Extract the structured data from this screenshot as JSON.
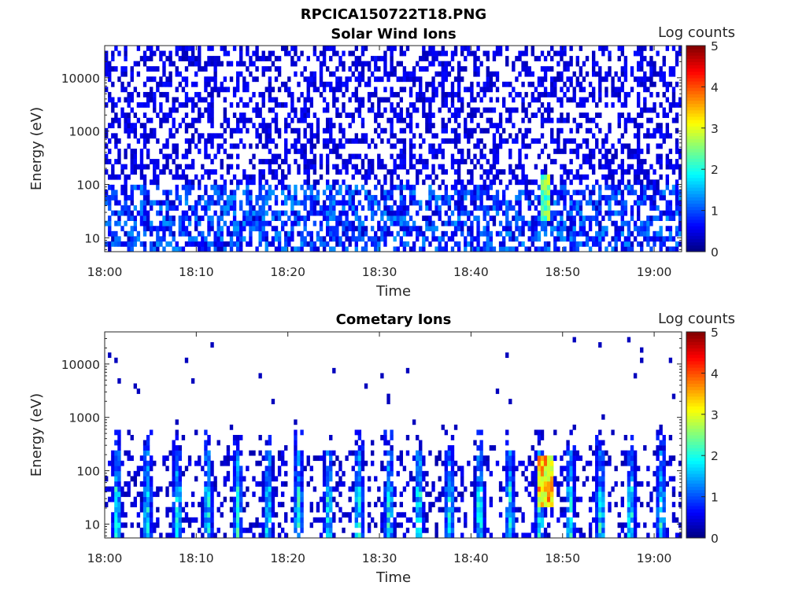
{
  "figure_title": "RPCICA150722T18.PNG",
  "chart_data": [
    {
      "type": "heatmap",
      "title": "Solar Wind Ions",
      "xlabel": "Time",
      "ylabel": "Energy (eV)",
      "x_ticks": [
        "18:00",
        "18:10",
        "18:20",
        "18:30",
        "18:40",
        "18:50",
        "19:00"
      ],
      "y_ticks": [
        "10",
        "100",
        "1000",
        "10000"
      ],
      "y_scale": "log",
      "xlim": [
        "18:00",
        "19:03"
      ],
      "ylim": [
        5.5,
        40000
      ],
      "colorbar": {
        "label": "Log counts",
        "ticks": [
          "0",
          "1",
          "2",
          "3",
          "4",
          "5"
        ],
        "range": [
          0,
          5
        ],
        "colormap": "jet"
      },
      "description_of_values": "Sparse ~0.5 log counts background across all energies; denser 0.5-1.5 at 10-100 eV; dispersed feature near 18:48 reaching ~3 at 20-150 eV"
    },
    {
      "type": "heatmap",
      "title": "Cometary Ions",
      "xlabel": "Time",
      "ylabel": "Energy (eV)",
      "x_ticks": [
        "18:00",
        "18:10",
        "18:20",
        "18:30",
        "18:40",
        "18:50",
        "19:00"
      ],
      "y_ticks": [
        "10",
        "100",
        "1000",
        "10000"
      ],
      "y_scale": "log",
      "xlim": [
        "18:00",
        "19:03"
      ],
      "ylim": [
        5.5,
        40000
      ],
      "colorbar": {
        "label": "Log counts",
        "ticks": [
          "0",
          "1",
          "2",
          "3",
          "4",
          "5"
        ],
        "range": [
          0,
          5
        ],
        "colormap": "jet"
      },
      "description_of_values": "Periodic ion bursts (~every 3.3 min) at 10-200 eV with 1-2.5 log counts; strongest burst near 18:48 up to ~4 at 20-60 eV; scattered single counts up to 10000 eV"
    }
  ]
}
